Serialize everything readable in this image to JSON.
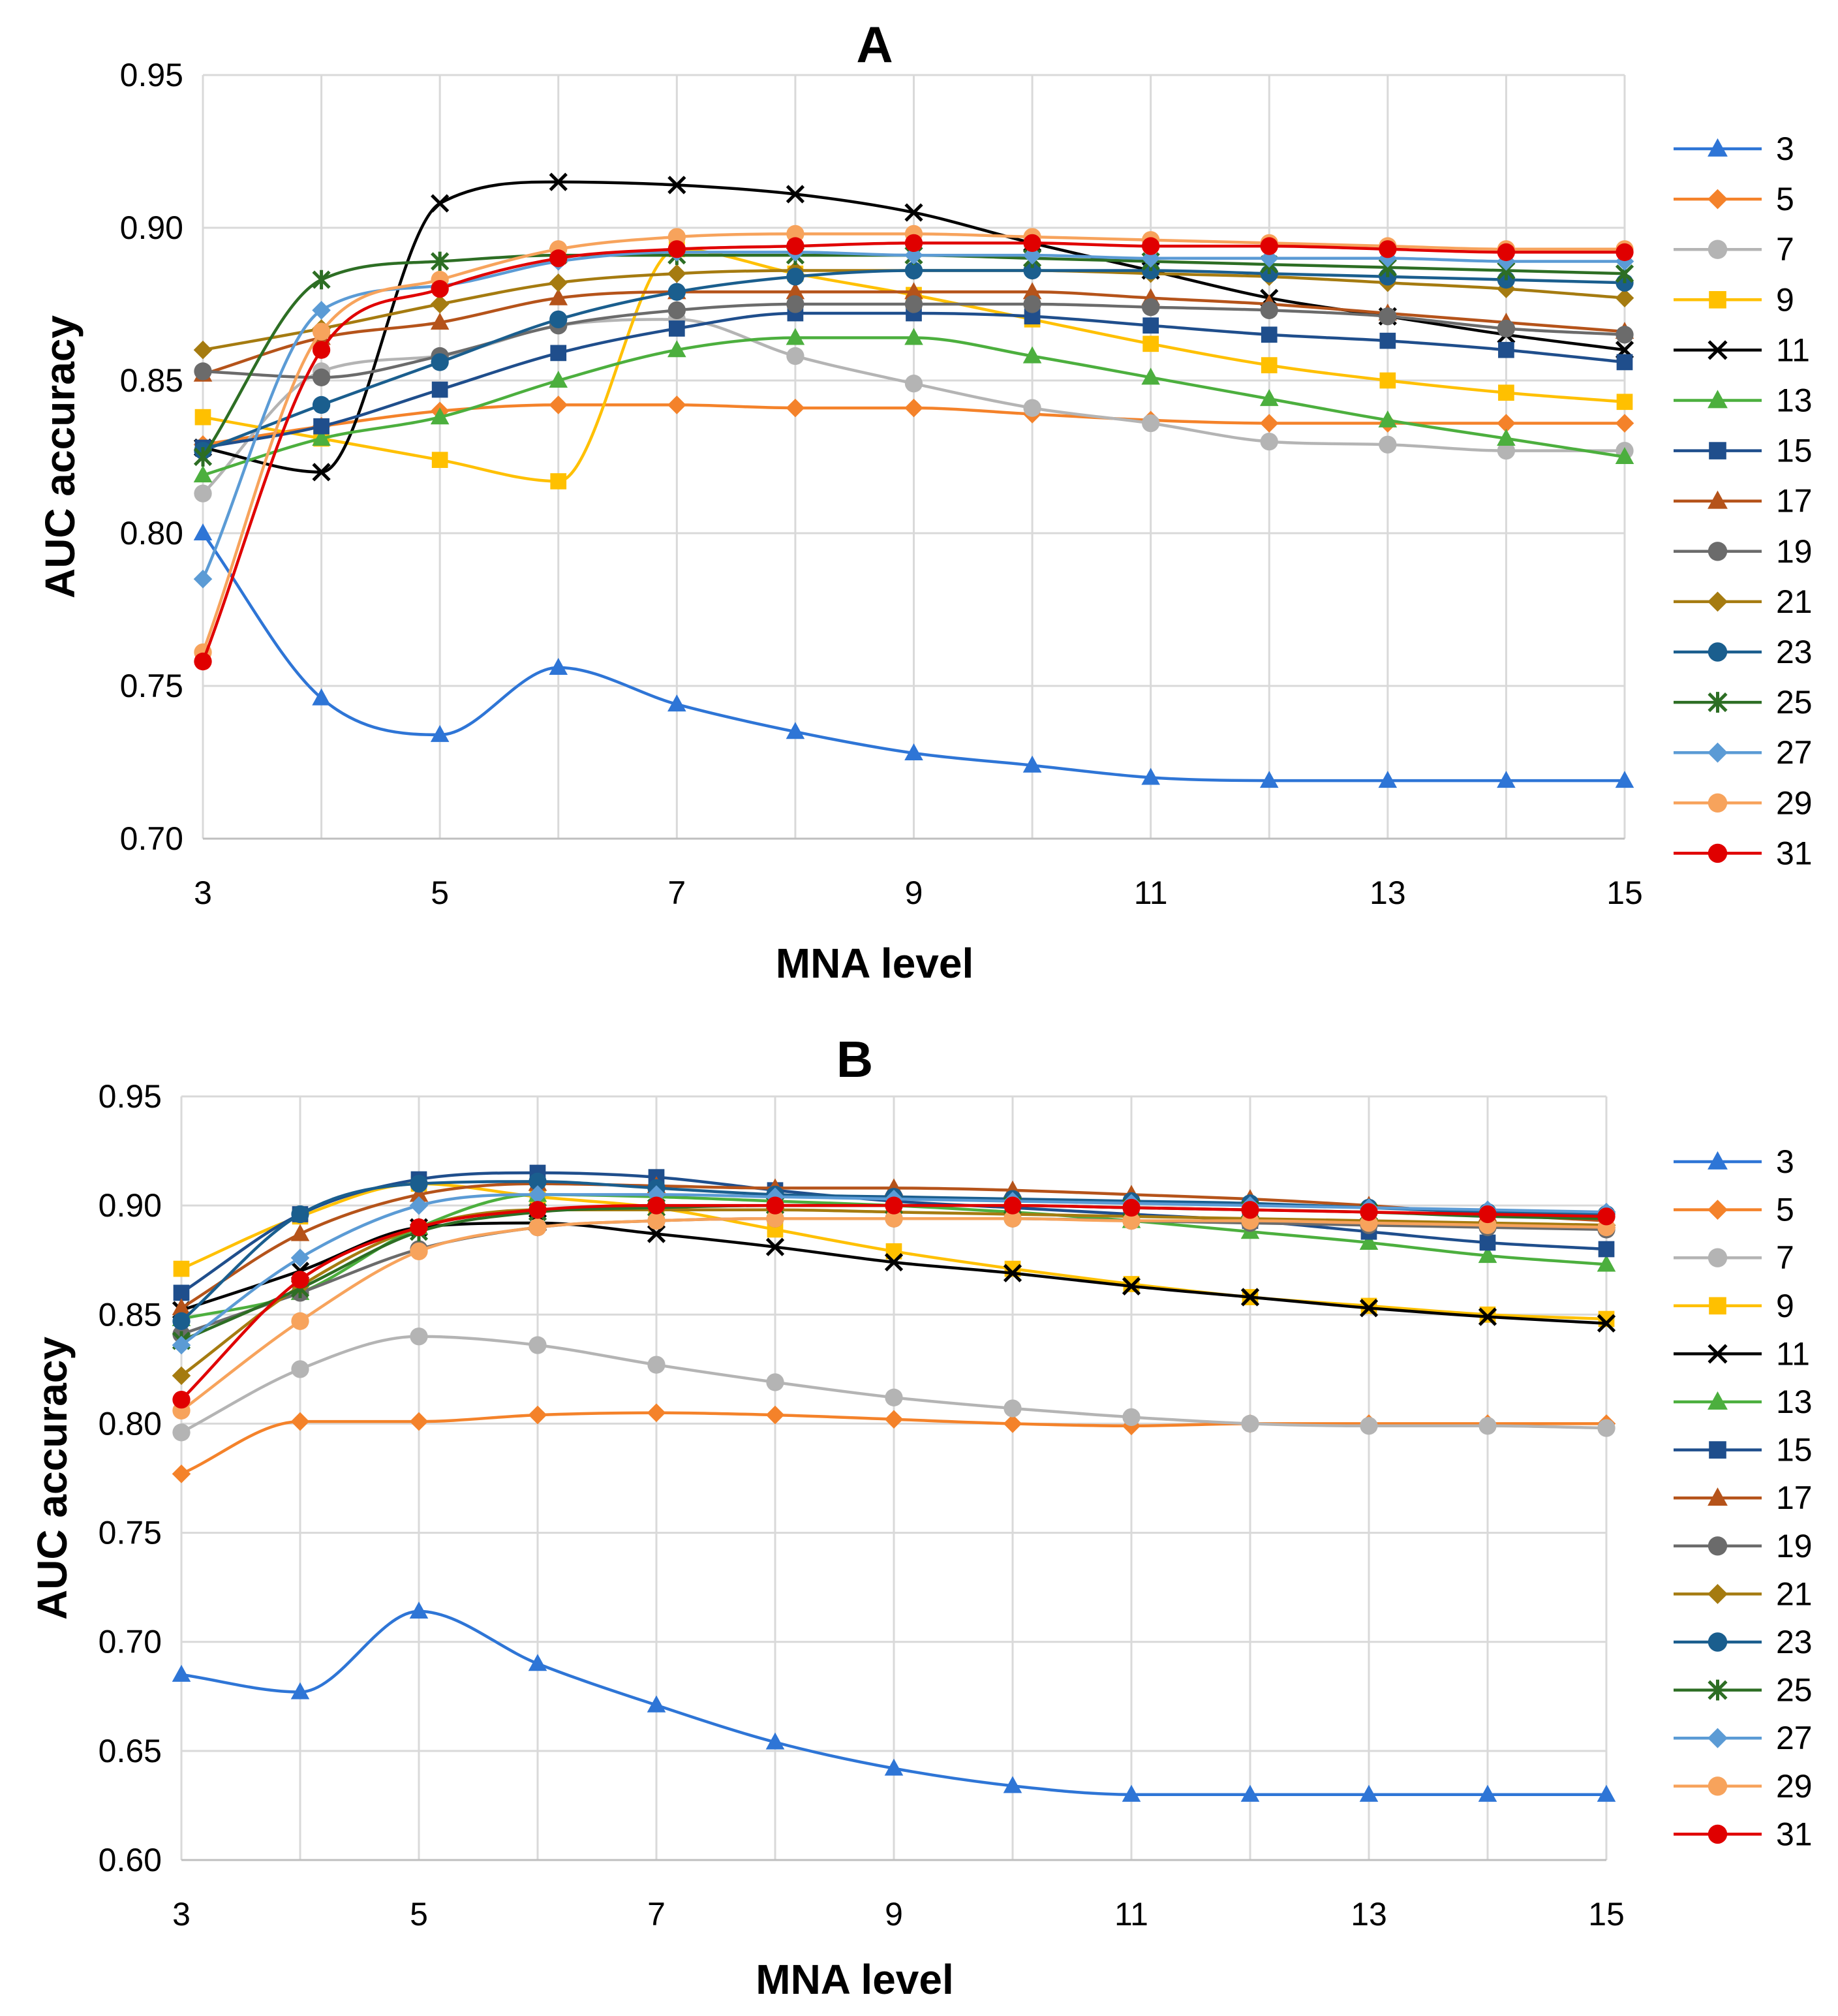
{
  "chart_data": [
    {
      "type": "line",
      "panel": "A",
      "title": "A",
      "xlabel": "MNA level",
      "ylabel": "AUC accuracy",
      "xlim": [
        3,
        15
      ],
      "ylim": [
        0.7,
        0.95
      ],
      "x_ticks": [
        3,
        5,
        7,
        9,
        11,
        13,
        15
      ],
      "y_ticks": [
        0.7,
        0.75,
        0.8,
        0.85,
        0.9,
        0.95
      ],
      "grid": true,
      "legend_position": "right",
      "x": [
        3,
        4,
        5,
        6,
        7,
        8,
        9,
        10,
        11,
        12,
        13,
        14,
        15
      ],
      "series": [
        {
          "name": "3",
          "marker": "triangle",
          "color": "#2E75D6",
          "values": [
            0.8,
            0.746,
            0.734,
            0.756,
            0.744,
            0.735,
            0.728,
            0.724,
            0.72,
            0.719,
            0.719,
            0.719,
            0.719
          ]
        },
        {
          "name": "5",
          "marker": "diamond",
          "color": "#F4822A",
          "values": [
            0.829,
            0.835,
            0.84,
            0.842,
            0.842,
            0.841,
            0.841,
            0.839,
            0.837,
            0.836,
            0.836,
            0.836,
            0.836
          ]
        },
        {
          "name": "7",
          "marker": "circle",
          "color": "#B4B4B4",
          "values": [
            0.813,
            0.853,
            0.858,
            0.868,
            0.87,
            0.858,
            0.849,
            0.841,
            0.836,
            0.83,
            0.829,
            0.827,
            0.827
          ]
        },
        {
          "name": "9",
          "marker": "square",
          "color": "#FFC000",
          "values": [
            0.838,
            0.831,
            0.824,
            0.817,
            0.893,
            0.885,
            0.878,
            0.87,
            0.862,
            0.855,
            0.85,
            0.846,
            0.843
          ]
        },
        {
          "name": "11",
          "marker": "x",
          "color": "#000000",
          "values": [
            0.828,
            0.82,
            0.908,
            0.915,
            0.914,
            0.911,
            0.905,
            0.895,
            0.886,
            0.877,
            0.871,
            0.865,
            0.86
          ]
        },
        {
          "name": "13",
          "marker": "triangle",
          "color": "#4CAF3E",
          "values": [
            0.819,
            0.831,
            0.838,
            0.85,
            0.86,
            0.864,
            0.864,
            0.858,
            0.851,
            0.844,
            0.837,
            0.831,
            0.825
          ]
        },
        {
          "name": "15",
          "marker": "square",
          "color": "#1F4E8C",
          "values": [
            0.828,
            0.835,
            0.847,
            0.859,
            0.867,
            0.872,
            0.872,
            0.871,
            0.868,
            0.865,
            0.863,
            0.86,
            0.856
          ]
        },
        {
          "name": "17",
          "marker": "triangle",
          "color": "#B5531A",
          "values": [
            0.852,
            0.864,
            0.869,
            0.877,
            0.879,
            0.879,
            0.879,
            0.879,
            0.877,
            0.875,
            0.872,
            0.869,
            0.866
          ]
        },
        {
          "name": "19",
          "marker": "circle",
          "color": "#6B6B6B",
          "values": [
            0.853,
            0.851,
            0.858,
            0.868,
            0.873,
            0.875,
            0.875,
            0.875,
            0.874,
            0.873,
            0.871,
            0.867,
            0.865
          ]
        },
        {
          "name": "21",
          "marker": "diamond",
          "color": "#A57B10",
          "values": [
            0.86,
            0.867,
            0.875,
            0.882,
            0.885,
            0.886,
            0.886,
            0.886,
            0.885,
            0.884,
            0.882,
            0.88,
            0.877
          ]
        },
        {
          "name": "23",
          "marker": "circle",
          "color": "#1A5E8E",
          "values": [
            0.827,
            0.842,
            0.856,
            0.87,
            0.879,
            0.884,
            0.886,
            0.886,
            0.886,
            0.885,
            0.884,
            0.883,
            0.882
          ]
        },
        {
          "name": "25",
          "marker": "asterisk",
          "color": "#2D6E24",
          "values": [
            0.825,
            0.883,
            0.889,
            0.891,
            0.891,
            0.891,
            0.891,
            0.89,
            0.889,
            0.888,
            0.887,
            0.886,
            0.885
          ]
        },
        {
          "name": "27",
          "marker": "diamond",
          "color": "#5B9BD5",
          "values": [
            0.785,
            0.873,
            0.881,
            0.889,
            0.892,
            0.892,
            0.891,
            0.891,
            0.89,
            0.89,
            0.89,
            0.889,
            0.889
          ]
        },
        {
          "name": "29",
          "marker": "circle",
          "color": "#F7A35C",
          "values": [
            0.761,
            0.866,
            0.883,
            0.893,
            0.897,
            0.898,
            0.898,
            0.897,
            0.896,
            0.895,
            0.894,
            0.893,
            0.893
          ]
        },
        {
          "name": "31",
          "marker": "circle",
          "color": "#E00000",
          "values": [
            0.758,
            0.86,
            0.88,
            0.89,
            0.893,
            0.894,
            0.895,
            0.895,
            0.894,
            0.894,
            0.893,
            0.892,
            0.892
          ]
        }
      ]
    },
    {
      "type": "line",
      "panel": "B",
      "title": "B",
      "xlabel": "MNA level",
      "ylabel": "AUC accuracy",
      "xlim": [
        3,
        15
      ],
      "ylim": [
        0.6,
        0.95
      ],
      "x_ticks": [
        3,
        5,
        7,
        9,
        11,
        13,
        15
      ],
      "y_ticks": [
        0.6,
        0.65,
        0.7,
        0.75,
        0.8,
        0.85,
        0.9,
        0.95
      ],
      "grid": true,
      "legend_position": "right",
      "x": [
        3,
        4,
        5,
        6,
        7,
        8,
        9,
        10,
        11,
        12,
        13,
        14,
        15
      ],
      "series": [
        {
          "name": "3",
          "marker": "triangle",
          "color": "#2E75D6",
          "values": [
            0.685,
            0.677,
            0.714,
            0.69,
            0.671,
            0.654,
            0.642,
            0.634,
            0.63,
            0.63,
            0.63,
            0.63,
            0.63
          ]
        },
        {
          "name": "5",
          "marker": "diamond",
          "color": "#F4822A",
          "values": [
            0.777,
            0.801,
            0.801,
            0.804,
            0.805,
            0.804,
            0.802,
            0.8,
            0.799,
            0.8,
            0.8,
            0.8,
            0.8
          ]
        },
        {
          "name": "7",
          "marker": "circle",
          "color": "#B4B4B4",
          "values": [
            0.796,
            0.825,
            0.84,
            0.836,
            0.827,
            0.819,
            0.812,
            0.807,
            0.803,
            0.8,
            0.799,
            0.799,
            0.798
          ]
        },
        {
          "name": "9",
          "marker": "square",
          "color": "#FFC000",
          "values": [
            0.871,
            0.895,
            0.91,
            0.904,
            0.899,
            0.889,
            0.879,
            0.871,
            0.864,
            0.858,
            0.854,
            0.85,
            0.848
          ]
        },
        {
          "name": "11",
          "marker": "x",
          "color": "#000000",
          "values": [
            0.852,
            0.87,
            0.89,
            0.892,
            0.887,
            0.881,
            0.874,
            0.869,
            0.863,
            0.858,
            0.853,
            0.849,
            0.846
          ]
        },
        {
          "name": "13",
          "marker": "triangle",
          "color": "#4CAF3E",
          "values": [
            0.848,
            0.86,
            0.89,
            0.905,
            0.904,
            0.902,
            0.9,
            0.897,
            0.893,
            0.888,
            0.883,
            0.877,
            0.873
          ]
        },
        {
          "name": "15",
          "marker": "square",
          "color": "#1F4E8C",
          "values": [
            0.86,
            0.896,
            0.912,
            0.915,
            0.913,
            0.907,
            0.902,
            0.899,
            0.896,
            0.893,
            0.888,
            0.883,
            0.88
          ]
        },
        {
          "name": "17",
          "marker": "triangle",
          "color": "#B5531A",
          "values": [
            0.853,
            0.887,
            0.905,
            0.91,
            0.909,
            0.908,
            0.908,
            0.907,
            0.905,
            0.903,
            0.9,
            0.896,
            0.893
          ]
        },
        {
          "name": "19",
          "marker": "circle",
          "color": "#6B6B6B",
          "values": [
            0.841,
            0.86,
            0.88,
            0.89,
            0.893,
            0.894,
            0.894,
            0.894,
            0.893,
            0.892,
            0.891,
            0.89,
            0.889
          ]
        },
        {
          "name": "21",
          "marker": "diamond",
          "color": "#A57B10",
          "values": [
            0.822,
            0.863,
            0.89,
            0.898,
            0.898,
            0.898,
            0.897,
            0.896,
            0.895,
            0.894,
            0.893,
            0.892,
            0.891
          ]
        },
        {
          "name": "23",
          "marker": "circle",
          "color": "#1A5E8E",
          "values": [
            0.847,
            0.896,
            0.91,
            0.911,
            0.908,
            0.905,
            0.904,
            0.903,
            0.902,
            0.901,
            0.899,
            0.897,
            0.896
          ]
        },
        {
          "name": "25",
          "marker": "asterisk",
          "color": "#2D6E24",
          "values": [
            0.838,
            0.862,
            0.888,
            0.897,
            0.899,
            0.9,
            0.9,
            0.9,
            0.899,
            0.898,
            0.897,
            0.895,
            0.894
          ]
        },
        {
          "name": "27",
          "marker": "diamond",
          "color": "#5B9BD5",
          "values": [
            0.836,
            0.876,
            0.9,
            0.905,
            0.905,
            0.904,
            0.903,
            0.902,
            0.901,
            0.9,
            0.899,
            0.898,
            0.897
          ]
        },
        {
          "name": "29",
          "marker": "circle",
          "color": "#F7A35C",
          "values": [
            0.806,
            0.847,
            0.879,
            0.89,
            0.893,
            0.894,
            0.894,
            0.894,
            0.893,
            0.893,
            0.892,
            0.891,
            0.89
          ]
        },
        {
          "name": "31",
          "marker": "circle",
          "color": "#E00000",
          "values": [
            0.811,
            0.866,
            0.89,
            0.898,
            0.9,
            0.9,
            0.9,
            0.9,
            0.899,
            0.898,
            0.897,
            0.896,
            0.895
          ]
        }
      ]
    }
  ]
}
